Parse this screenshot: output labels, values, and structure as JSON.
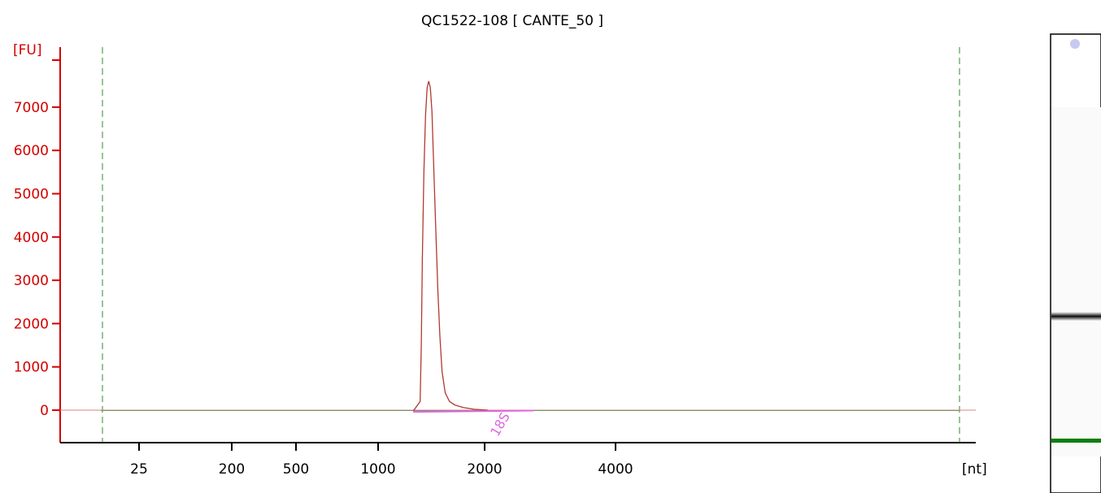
{
  "colors": {
    "y_axis": "#d40000",
    "x_axis": "#000000",
    "trace": "#b03a2e",
    "baseline": "#6c9a6c",
    "zero_line": "#e08080",
    "marker_lines": "#2e8b2e",
    "peak_label": "#e066e0",
    "gel_band": "#111111",
    "gel_marker": "#0a7f0a",
    "gel_spot": "#c8c8f0"
  },
  "chart_data": {
    "type": "line",
    "title": "QC1522-108  [ CANTE_50 ]",
    "ylabel": "[FU]",
    "xlabel": "[nt]",
    "ylim": [
      -750,
      8000
    ],
    "yticks": [
      0,
      1000,
      2000,
      3000,
      4000,
      5000,
      6000,
      7000
    ],
    "ytick_labels": [
      "0",
      "1000",
      "2000",
      "3000",
      "4000",
      "5000",
      "6000",
      "7000"
    ],
    "xtick_labels": [
      "25",
      "200",
      "500",
      "1000",
      "2000",
      "4000"
    ],
    "grid": false,
    "legend": "none",
    "series": [
      {
        "points": [
          [
            1330,
            -20
          ],
          [
            1395,
            200
          ],
          [
            1405,
            1500
          ],
          [
            1415,
            3500
          ],
          [
            1430,
            5500
          ],
          [
            1445,
            6800
          ],
          [
            1460,
            7450
          ],
          [
            1475,
            7600
          ],
          [
            1490,
            7450
          ],
          [
            1505,
            6900
          ],
          [
            1520,
            5800
          ],
          [
            1540,
            4300
          ],
          [
            1560,
            2800
          ],
          [
            1580,
            1700
          ],
          [
            1600,
            900
          ],
          [
            1630,
            400
          ],
          [
            1670,
            200
          ],
          [
            1720,
            120
          ],
          [
            1800,
            60
          ],
          [
            1900,
            20
          ],
          [
            2050,
            0
          ]
        ]
      }
    ],
    "annotations": [
      {
        "text": "18S",
        "x": 2200,
        "y": -100
      }
    ],
    "marker_lines_x": [
      10,
      8000
    ]
  },
  "gel": {
    "band_position": 0.615,
    "marker_position": 0.885
  }
}
